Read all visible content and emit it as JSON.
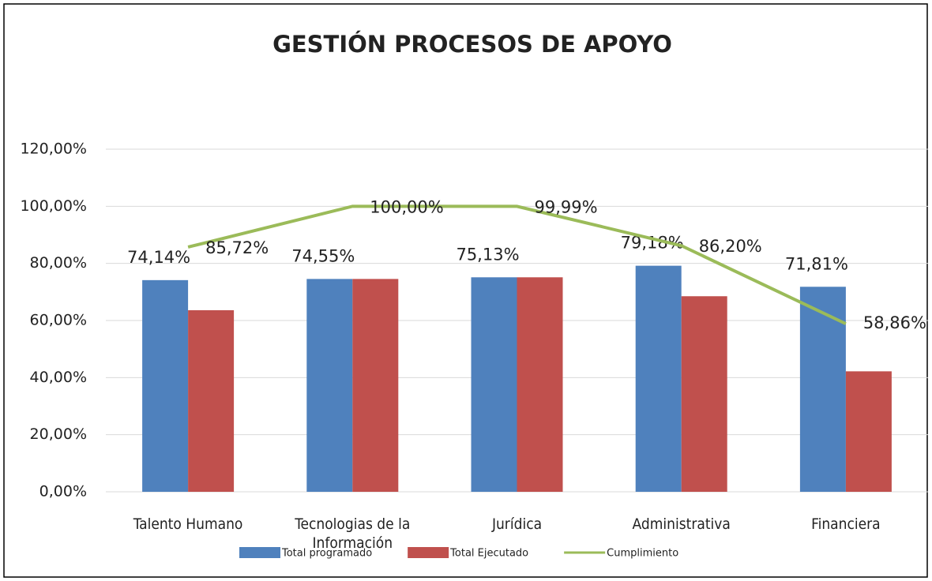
{
  "chart_data": {
    "type": "bar",
    "title": "GESTIÓN PROCESOS DE APOYO",
    "categories": [
      "Talento Humano",
      "Tecnologias de la Información",
      "Jurídica",
      "Administrativa",
      "Financiera"
    ],
    "series": [
      {
        "name": "Total programado",
        "color": "#4f81bd",
        "type": "bar",
        "values": [
          74.14,
          74.55,
          75.13,
          79.18,
          71.81
        ],
        "value_labels": [
          "74,14%",
          "74,55%",
          "75,13%",
          "79,18%",
          "71,81%"
        ]
      },
      {
        "name": "Total Ejecutado",
        "color": "#c0504d",
        "type": "bar",
        "values": [
          63.6,
          74.55,
          75.13,
          68.5,
          42.2
        ]
      },
      {
        "name": "Cumplimiento",
        "color": "#9bbb59",
        "type": "line",
        "values": [
          85.72,
          100,
          99.99,
          86.2,
          58.86
        ],
        "value_labels": [
          "85,72%",
          "100,00%",
          "99,99%",
          "86,20%",
          "58,86%"
        ]
      }
    ],
    "ylim": [
      0,
      120
    ],
    "yticks": [
      {
        "value": 0,
        "label": "0,00%"
      },
      {
        "value": 20,
        "label": "20,00%"
      },
      {
        "value": 40,
        "label": "40,00%"
      },
      {
        "value": 60,
        "label": "60,00%"
      },
      {
        "value": 80,
        "label": "80,00%"
      },
      {
        "value": 100,
        "label": "100,00%"
      },
      {
        "value": 120,
        "label": "120,00%"
      }
    ],
    "grid": true,
    "legend": "bottom"
  }
}
